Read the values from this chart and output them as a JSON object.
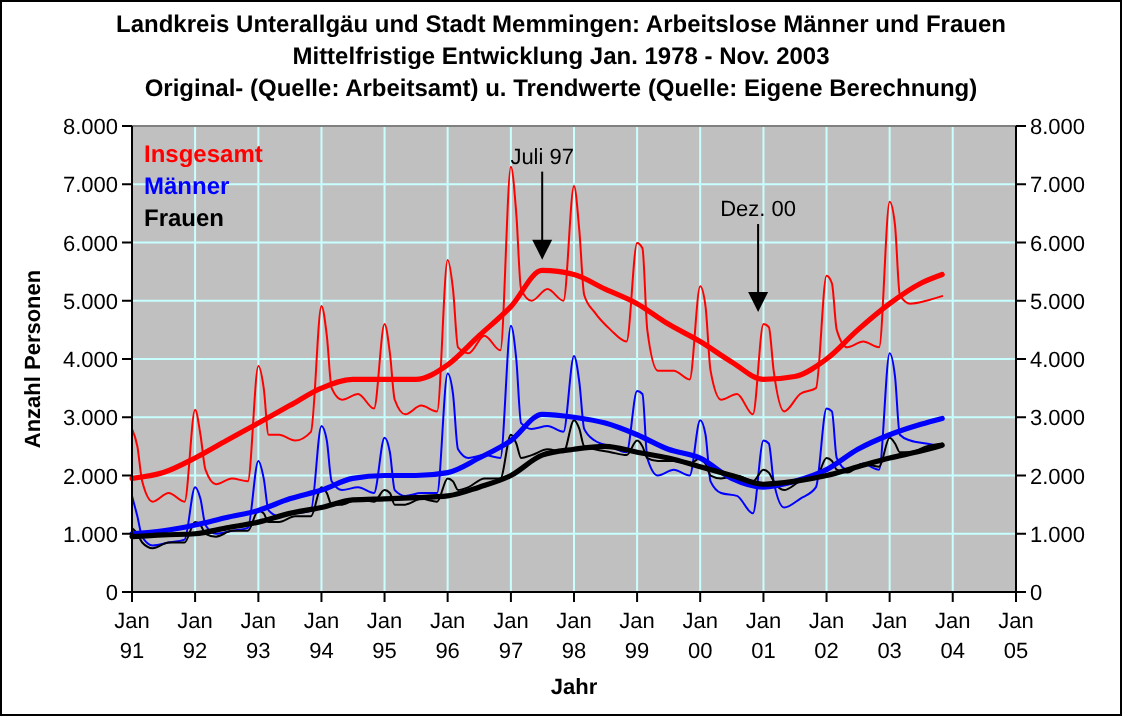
{
  "chart_data": {
    "type": "line",
    "title": "Landkreis Unterallgäu und Stadt Memmingen: Arbeitslose Männer und Frauen",
    "subtitle": "Mittelfristige Entwicklung Jan. 1978 - Nov. 2003\nOriginal- (Quelle: Arbeitsamt) u. Trendwerte (Quelle: Eigene Berechnung)",
    "xlabel": "Jahr",
    "ylabel": "Anzahl Personen",
    "xlim": [
      "1991-01",
      "2005-01"
    ],
    "xticks": [
      {
        "value": "1991-01",
        "label": "Jan 91"
      },
      {
        "value": "1992-01",
        "label": "Jan 92"
      },
      {
        "value": "1993-01",
        "label": "Jan 93"
      },
      {
        "value": "1994-01",
        "label": "Jan 94"
      },
      {
        "value": "1995-01",
        "label": "Jan 95"
      },
      {
        "value": "1996-01",
        "label": "Jan 96"
      },
      {
        "value": "1997-01",
        "label": "Jan 97"
      },
      {
        "value": "1998-01",
        "label": "Jan 98"
      },
      {
        "value": "1999-01",
        "label": "Jan 99"
      },
      {
        "value": "2000-01",
        "label": "Jan 00"
      },
      {
        "value": "2001-01",
        "label": "Jan 01"
      },
      {
        "value": "2002-01",
        "label": "Jan 02"
      },
      {
        "value": "2003-01",
        "label": "Jan 03"
      },
      {
        "value": "2004-01",
        "label": "Jan 04"
      },
      {
        "value": "2005-01",
        "label": "Jan 05"
      }
    ],
    "ylim": [
      0,
      8000
    ],
    "yticks": [
      0,
      {
        "value": 1000,
        "label": "1.000"
      },
      {
        "value": 2000,
        "label": "2.000"
      },
      {
        "value": 3000,
        "label": "3.000"
      },
      {
        "value": 4000,
        "label": "4.000"
      },
      {
        "value": 5000,
        "label": "5.000"
      },
      {
        "value": 6000,
        "label": "6.000"
      },
      {
        "value": 7000,
        "label": "7.000"
      },
      {
        "value": 8000,
        "label": "8.000"
      }
    ],
    "y2lim": [
      0,
      8000
    ],
    "y2ticks": [
      0,
      {
        "value": 1000,
        "label": "1.000"
      },
      {
        "value": 2000,
        "label": "2.000"
      },
      {
        "value": 3000,
        "label": "3.000"
      },
      {
        "value": 4000,
        "label": "4.000"
      },
      {
        "value": 5000,
        "label": "5.000"
      },
      {
        "value": 6000,
        "label": "6.000"
      },
      {
        "value": 7000,
        "label": "7.000"
      },
      {
        "value": 8000,
        "label": "8.000"
      }
    ],
    "grid": true,
    "legend": "top left",
    "marker": "none",
    "line_style": "solid",
    "annotations": [
      {
        "text": "Juli 97",
        "x": "1997-07",
        "y": 5500
      },
      {
        "text": "Dez. 00",
        "x": "2000-12",
        "y": 4600
      }
    ],
    "series": [
      {
        "name": "Insgesamt",
        "color": "#ff0000",
        "x": [
          "1991-01",
          "1991-02",
          "1991-03",
          "1991-05",
          "1991-08",
          "1991-11",
          "1992-01",
          "1992-02",
          "1992-03",
          "1992-05",
          "1992-08",
          "1992-11",
          "1993-01",
          "1993-02",
          "1993-03",
          "1993-05",
          "1993-08",
          "1993-11",
          "1994-01",
          "1994-02",
          "1994-03",
          "1994-05",
          "1994-08",
          "1994-11",
          "1995-01",
          "1995-02",
          "1995-03",
          "1995-05",
          "1995-08",
          "1995-11",
          "1996-01",
          "1996-02",
          "1996-03",
          "1996-05",
          "1996-08",
          "1996-11",
          "1997-01",
          "1997-02",
          "1997-03",
          "1997-05",
          "1997-08",
          "1997-11",
          "1998-01",
          "1998-02",
          "1998-03",
          "1998-05",
          "1998-08",
          "1998-11",
          "1999-01",
          "1999-02",
          "1999-03",
          "1999-05",
          "1999-08",
          "1999-11",
          "2000-01",
          "2000-02",
          "2000-03",
          "2000-05",
          "2000-08",
          "2000-11",
          "2001-01",
          "2001-02",
          "2001-03",
          "2001-05",
          "2001-08",
          "2001-11",
          "2002-01",
          "2002-02",
          "2002-03",
          "2002-05",
          "2002-08",
          "2002-11",
          "2003-01",
          "2003-02",
          "2003-03",
          "2003-05",
          "2003-08",
          "2003-11"
        ],
        "values": [
          2800,
          2500,
          1900,
          1550,
          1700,
          1550,
          3130,
          2700,
          2100,
          1850,
          1950,
          1900,
          3880,
          3500,
          2700,
          2700,
          2600,
          2750,
          4910,
          4400,
          3500,
          3300,
          3400,
          3150,
          4600,
          4100,
          3300,
          3050,
          3200,
          3100,
          5700,
          5200,
          4200,
          4100,
          4400,
          4150,
          7300,
          6500,
          5200,
          5000,
          5200,
          5000,
          6970,
          6200,
          5100,
          4800,
          4500,
          4300,
          5990,
          5900,
          4500,
          3800,
          3800,
          3650,
          5250,
          4900,
          3800,
          3300,
          3400,
          3050,
          4600,
          4550,
          3800,
          3100,
          3400,
          3500,
          5430,
          5300,
          4500,
          4200,
          4300,
          4200,
          6700,
          6300,
          5100,
          4950,
          5000,
          5080
        ]
      },
      {
        "name": "Männer",
        "color": "#0000ff",
        "x": [
          "1991-01",
          "1991-02",
          "1991-03",
          "1991-05",
          "1991-08",
          "1991-11",
          "1992-01",
          "1992-02",
          "1992-03",
          "1992-05",
          "1992-08",
          "1992-11",
          "1993-01",
          "1993-02",
          "1993-03",
          "1993-05",
          "1993-08",
          "1993-11",
          "1994-01",
          "1994-02",
          "1994-03",
          "1994-05",
          "1994-08",
          "1994-11",
          "1995-01",
          "1995-02",
          "1995-03",
          "1995-05",
          "1995-08",
          "1995-11",
          "1996-01",
          "1996-02",
          "1996-03",
          "1996-05",
          "1996-08",
          "1996-11",
          "1997-01",
          "1997-02",
          "1997-03",
          "1997-05",
          "1997-08",
          "1997-11",
          "1998-01",
          "1998-02",
          "1998-03",
          "1998-05",
          "1998-08",
          "1998-11",
          "1999-01",
          "1999-02",
          "1999-03",
          "1999-05",
          "1999-08",
          "1999-11",
          "2000-01",
          "2000-02",
          "2000-03",
          "2000-05",
          "2000-08",
          "2000-11",
          "2001-01",
          "2001-02",
          "2001-03",
          "2001-05",
          "2001-08",
          "2001-11",
          "2002-01",
          "2002-02",
          "2002-03",
          "2002-05",
          "2002-08",
          "2002-11",
          "2003-01",
          "2003-02",
          "2003-03",
          "2003-05",
          "2003-08",
          "2003-11"
        ],
        "values": [
          1650,
          1300,
          950,
          800,
          850,
          900,
          1800,
          1600,
          1150,
          1000,
          1050,
          1100,
          2250,
          1950,
          1400,
          1300,
          1350,
          1400,
          2850,
          2600,
          1900,
          1750,
          1800,
          1700,
          2650,
          2400,
          1750,
          1650,
          1700,
          1700,
          3750,
          3400,
          2450,
          2300,
          2350,
          2300,
          4570,
          4000,
          2900,
          2800,
          2850,
          2750,
          4050,
          3600,
          2800,
          2600,
          2500,
          2400,
          3450,
          3400,
          2300,
          2000,
          2100,
          2000,
          2950,
          2700,
          1900,
          1700,
          1650,
          1350,
          2600,
          2550,
          1900,
          1450,
          1600,
          1800,
          3150,
          3100,
          2300,
          2100,
          2200,
          2100,
          4100,
          3700,
          2700,
          2600,
          2550,
          2500
        ]
      },
      {
        "name": "Frauen",
        "color": "#000000",
        "x": [
          "1991-01",
          "1991-02",
          "1991-03",
          "1991-05",
          "1991-08",
          "1991-11",
          "1992-01",
          "1992-02",
          "1992-03",
          "1992-05",
          "1992-08",
          "1992-11",
          "1993-01",
          "1993-02",
          "1993-03",
          "1993-05",
          "1993-08",
          "1993-11",
          "1994-01",
          "1994-02",
          "1994-03",
          "1994-05",
          "1994-08",
          "1994-11",
          "1995-01",
          "1995-02",
          "1995-03",
          "1995-05",
          "1995-08",
          "1995-11",
          "1996-01",
          "1996-02",
          "1996-03",
          "1996-05",
          "1996-08",
          "1996-11",
          "1997-01",
          "1997-02",
          "1997-03",
          "1997-05",
          "1997-08",
          "1997-11",
          "1998-01",
          "1998-02",
          "1998-03",
          "1998-05",
          "1998-08",
          "1998-11",
          "1999-01",
          "1999-02",
          "1999-03",
          "1999-05",
          "1999-08",
          "1999-11",
          "2000-01",
          "2000-02",
          "2000-03",
          "2000-05",
          "2000-08",
          "2000-11",
          "2001-01",
          "2001-02",
          "2001-03",
          "2001-05",
          "2001-08",
          "2001-11",
          "2002-01",
          "2002-02",
          "2002-03",
          "2002-05",
          "2002-08",
          "2002-11",
          "2003-01",
          "2003-02",
          "2003-03",
          "2003-05",
          "2003-08",
          "2003-11"
        ],
        "values": [
          1100,
          1000,
          850,
          750,
          850,
          850,
          1200,
          1150,
          1000,
          950,
          1050,
          1050,
          1400,
          1350,
          1200,
          1200,
          1300,
          1300,
          1800,
          1700,
          1500,
          1500,
          1600,
          1550,
          1750,
          1700,
          1500,
          1500,
          1600,
          1550,
          1950,
          1900,
          1750,
          1800,
          1950,
          1950,
          2700,
          2550,
          2300,
          2350,
          2450,
          2400,
          2950,
          2800,
          2500,
          2450,
          2400,
          2350,
          2600,
          2500,
          2300,
          2250,
          2250,
          2200,
          2300,
          2200,
          2000,
          1950,
          2000,
          1900,
          2100,
          2050,
          1900,
          1750,
          1900,
          1950,
          2300,
          2250,
          2100,
          2050,
          2200,
          2150,
          2650,
          2550,
          2400,
          2400,
          2500,
          2550
        ]
      },
      {
        "color": "#ff0000",
        "x": [
          "1991-01",
          "1991-07",
          "1992-01",
          "1992-07",
          "1993-01",
          "1993-07",
          "1994-01",
          "1994-07",
          "1995-01",
          "1995-07",
          "1996-01",
          "1996-07",
          "1997-01",
          "1997-07",
          "1998-01",
          "1998-07",
          "1999-01",
          "1999-07",
          "2000-01",
          "2000-07",
          "2001-01",
          "2001-07",
          "2002-01",
          "2002-07",
          "2003-01",
          "2003-07",
          "2003-11"
        ],
        "values": [
          1950,
          2050,
          2300,
          2600,
          2900,
          3200,
          3500,
          3650,
          3650,
          3650,
          3900,
          4400,
          4900,
          5520,
          5450,
          5200,
          4950,
          4600,
          4300,
          3950,
          3650,
          3700,
          4000,
          4500,
          4950,
          5300,
          5450
        ]
      },
      {
        "color": "#0000ff",
        "x": [
          "1991-01",
          "1991-07",
          "1992-01",
          "1992-07",
          "1993-01",
          "1993-07",
          "1994-01",
          "1994-07",
          "1995-01",
          "1995-07",
          "1996-01",
          "1996-07",
          "1997-01",
          "1997-07",
          "1998-01",
          "1998-07",
          "1999-01",
          "1999-07",
          "2000-01",
          "2000-07",
          "2001-01",
          "2001-07",
          "2002-01",
          "2002-07",
          "2003-01",
          "2003-07",
          "2003-11"
        ],
        "values": [
          1000,
          1050,
          1150,
          1280,
          1400,
          1600,
          1750,
          1950,
          2000,
          2000,
          2050,
          2300,
          2600,
          3050,
          3000,
          2900,
          2700,
          2450,
          2300,
          1950,
          1800,
          1900,
          2100,
          2450,
          2700,
          2880,
          2980
        ]
      },
      {
        "color": "#000000",
        "x": [
          "1991-01",
          "1991-07",
          "1992-01",
          "1992-07",
          "1993-01",
          "1993-07",
          "1994-01",
          "1994-07",
          "1995-01",
          "1995-07",
          "1996-01",
          "1996-07",
          "1997-01",
          "1997-07",
          "1998-01",
          "1998-07",
          "1999-01",
          "1999-07",
          "2000-01",
          "2000-07",
          "2001-01",
          "2001-07",
          "2002-01",
          "2002-07",
          "2003-01",
          "2003-07",
          "2003-11"
        ],
        "values": [
          950,
          980,
          1000,
          1100,
          1200,
          1350,
          1450,
          1580,
          1600,
          1620,
          1650,
          1800,
          2000,
          2350,
          2450,
          2500,
          2400,
          2300,
          2150,
          2000,
          1850,
          1900,
          2000,
          2150,
          2300,
          2420,
          2520
        ]
      }
    ]
  }
}
